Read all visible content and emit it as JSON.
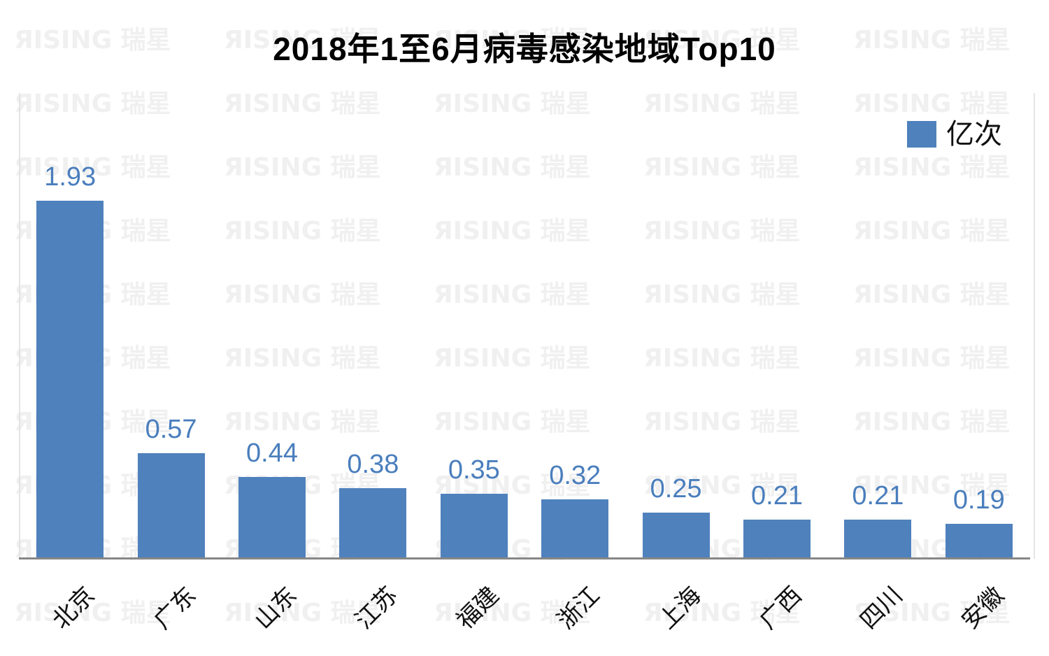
{
  "watermark": {
    "text": "ЯISING 瑞星",
    "color": "#f0f0f0"
  },
  "chart_data": {
    "type": "bar",
    "title": "2018年1至6月病毒感染地域Top10",
    "categories": [
      "北京",
      "广东",
      "山东",
      "江苏",
      "福建",
      "浙江",
      "上海",
      "广西",
      "四川",
      "安徽"
    ],
    "values": [
      1.93,
      0.57,
      0.44,
      0.38,
      0.35,
      0.32,
      0.25,
      0.21,
      0.21,
      0.19
    ],
    "series_name": "亿次",
    "legend": {
      "label": "亿次",
      "position": "top-right"
    },
    "value_labels_shown": true,
    "bar_color": "#4f81bd",
    "value_label_color": "#4a7ebd",
    "axis_line_color": "#878787",
    "xlabel": "",
    "ylabel": "",
    "ylim": [
      0,
      2.0
    ],
    "grid": false,
    "x_tick_rotation": 45
  }
}
